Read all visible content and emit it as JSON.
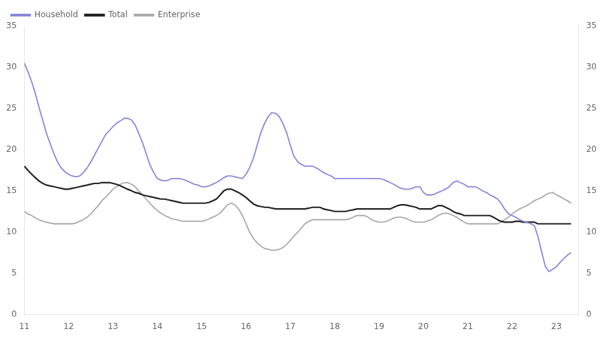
{
  "chart_data": {
    "type": "line",
    "x": [
      11.0,
      11.08,
      11.17,
      11.25,
      11.33,
      11.42,
      11.5,
      11.58,
      11.67,
      11.75,
      11.83,
      11.92,
      12.0,
      12.08,
      12.17,
      12.25,
      12.33,
      12.42,
      12.5,
      12.58,
      12.67,
      12.75,
      12.83,
      12.92,
      13.0,
      13.08,
      13.17,
      13.25,
      13.33,
      13.42,
      13.5,
      13.58,
      13.67,
      13.75,
      13.83,
      13.92,
      14.0,
      14.08,
      14.17,
      14.25,
      14.33,
      14.42,
      14.5,
      14.58,
      14.67,
      14.75,
      14.83,
      14.92,
      15.0,
      15.08,
      15.17,
      15.25,
      15.33,
      15.42,
      15.5,
      15.58,
      15.67,
      15.75,
      15.83,
      15.92,
      16.0,
      16.08,
      16.17,
      16.25,
      16.33,
      16.42,
      16.5,
      16.58,
      16.67,
      16.75,
      16.83,
      16.92,
      17.0,
      17.08,
      17.17,
      17.25,
      17.33,
      17.42,
      17.5,
      17.58,
      17.67,
      17.75,
      17.83,
      17.92,
      18.0,
      18.08,
      18.17,
      18.25,
      18.33,
      18.42,
      18.5,
      18.58,
      18.67,
      18.75,
      18.83,
      18.92,
      19.0,
      19.08,
      19.17,
      19.25,
      19.33,
      19.42,
      19.5,
      19.58,
      19.67,
      19.75,
      19.83,
      19.92,
      20.0,
      20.08,
      20.17,
      20.25,
      20.33,
      20.42,
      20.5,
      20.58,
      20.67,
      20.75,
      20.83,
      20.92,
      21.0,
      21.08,
      21.17,
      21.25,
      21.33,
      21.42,
      21.5,
      21.58,
      21.67,
      21.75,
      21.83,
      21.92,
      22.0,
      22.08,
      22.17,
      22.25,
      22.33,
      22.42,
      22.5,
      22.58,
      22.67,
      22.75,
      22.83,
      22.92,
      23.0,
      23.08,
      23.17,
      23.25,
      23.33
    ],
    "series": [
      {
        "name": "Household",
        "color": "#8888dd",
        "values": [
          30.5,
          29.5,
          28.2,
          26.8,
          25.2,
          23.5,
          22.0,
          20.8,
          19.5,
          18.5,
          17.8,
          17.3,
          17.0,
          16.8,
          16.7,
          16.8,
          17.2,
          17.8,
          18.5,
          19.3,
          20.2,
          21.0,
          21.8,
          22.3,
          22.8,
          23.2,
          23.5,
          23.8,
          23.8,
          23.6,
          23.0,
          22.0,
          20.8,
          19.5,
          18.2,
          17.2,
          16.5,
          16.3,
          16.2,
          16.3,
          16.5,
          16.5,
          16.5,
          16.4,
          16.2,
          16.0,
          15.8,
          15.7,
          15.5,
          15.5,
          15.6,
          15.8,
          16.0,
          16.3,
          16.6,
          16.8,
          16.8,
          16.7,
          16.6,
          16.5,
          17.0,
          17.8,
          19.0,
          20.5,
          22.0,
          23.2,
          24.0,
          24.5,
          24.4,
          24.0,
          23.2,
          22.0,
          20.5,
          19.2,
          18.5,
          18.2,
          18.0,
          18.0,
          18.0,
          17.8,
          17.5,
          17.2,
          17.0,
          16.8,
          16.5,
          16.5,
          16.5,
          16.5,
          16.5,
          16.5,
          16.5,
          16.5,
          16.5,
          16.5,
          16.5,
          16.5,
          16.5,
          16.4,
          16.2,
          16.0,
          15.8,
          15.5,
          15.3,
          15.2,
          15.2,
          15.3,
          15.5,
          15.5,
          14.8,
          14.5,
          14.5,
          14.6,
          14.8,
          15.0,
          15.2,
          15.5,
          16.0,
          16.2,
          16.0,
          15.8,
          15.5,
          15.5,
          15.5,
          15.3,
          15.0,
          14.8,
          14.5,
          14.3,
          14.0,
          13.5,
          12.8,
          12.2,
          12.0,
          11.8,
          11.5,
          11.3,
          11.2,
          11.0,
          10.8,
          9.5,
          7.5,
          5.8,
          5.2,
          5.5,
          5.8,
          6.3,
          6.8,
          7.2,
          7.5
        ]
      },
      {
        "name": "Total",
        "color": "#222222",
        "values": [
          18.0,
          17.5,
          17.0,
          16.6,
          16.2,
          15.9,
          15.7,
          15.6,
          15.5,
          15.4,
          15.3,
          15.2,
          15.2,
          15.3,
          15.4,
          15.5,
          15.6,
          15.7,
          15.8,
          15.9,
          15.9,
          16.0,
          16.0,
          16.0,
          15.9,
          15.8,
          15.6,
          15.4,
          15.2,
          15.0,
          14.8,
          14.7,
          14.5,
          14.4,
          14.3,
          14.2,
          14.1,
          14.0,
          14.0,
          13.9,
          13.8,
          13.7,
          13.6,
          13.5,
          13.5,
          13.5,
          13.5,
          13.5,
          13.5,
          13.5,
          13.6,
          13.8,
          14.0,
          14.5,
          15.0,
          15.2,
          15.2,
          15.0,
          14.8,
          14.5,
          14.2,
          13.8,
          13.4,
          13.2,
          13.1,
          13.0,
          13.0,
          12.9,
          12.8,
          12.8,
          12.8,
          12.8,
          12.8,
          12.8,
          12.8,
          12.8,
          12.8,
          12.9,
          13.0,
          13.0,
          13.0,
          12.8,
          12.7,
          12.6,
          12.5,
          12.5,
          12.5,
          12.5,
          12.6,
          12.7,
          12.8,
          12.8,
          12.8,
          12.8,
          12.8,
          12.8,
          12.8,
          12.8,
          12.8,
          12.8,
          13.0,
          13.2,
          13.3,
          13.3,
          13.2,
          13.1,
          13.0,
          12.8,
          12.8,
          12.8,
          12.8,
          13.0,
          13.2,
          13.2,
          13.0,
          12.8,
          12.5,
          12.3,
          12.2,
          12.0,
          12.0,
          12.0,
          12.0,
          12.0,
          12.0,
          12.0,
          12.0,
          11.8,
          11.5,
          11.3,
          11.2,
          11.2,
          11.2,
          11.3,
          11.3,
          11.2,
          11.2,
          11.2,
          11.2,
          11.0,
          11.0,
          11.0,
          11.0,
          11.0,
          11.0,
          11.0,
          11.0,
          11.0,
          11.0
        ]
      },
      {
        "name": "Enterprise",
        "color": "#aaaaaa",
        "values": [
          12.5,
          12.2,
          12.0,
          11.7,
          11.5,
          11.3,
          11.2,
          11.1,
          11.0,
          11.0,
          11.0,
          11.0,
          11.0,
          11.0,
          11.1,
          11.3,
          11.5,
          11.8,
          12.2,
          12.7,
          13.2,
          13.8,
          14.2,
          14.7,
          15.2,
          15.5,
          15.8,
          16.0,
          16.0,
          15.8,
          15.5,
          15.0,
          14.5,
          14.0,
          13.5,
          13.0,
          12.6,
          12.3,
          12.0,
          11.8,
          11.6,
          11.5,
          11.4,
          11.3,
          11.3,
          11.3,
          11.3,
          11.3,
          11.3,
          11.4,
          11.6,
          11.8,
          12.0,
          12.3,
          12.8,
          13.3,
          13.5,
          13.3,
          12.8,
          12.0,
          11.0,
          10.0,
          9.2,
          8.7,
          8.3,
          8.0,
          7.9,
          7.8,
          7.8,
          7.9,
          8.1,
          8.5,
          9.0,
          9.5,
          10.0,
          10.5,
          11.0,
          11.3,
          11.5,
          11.5,
          11.5,
          11.5,
          11.5,
          11.5,
          11.5,
          11.5,
          11.5,
          11.5,
          11.6,
          11.8,
          12.0,
          12.0,
          12.0,
          11.8,
          11.5,
          11.3,
          11.2,
          11.2,
          11.3,
          11.5,
          11.7,
          11.8,
          11.8,
          11.7,
          11.5,
          11.3,
          11.2,
          11.2,
          11.2,
          11.3,
          11.5,
          11.7,
          12.0,
          12.2,
          12.3,
          12.2,
          12.0,
          11.8,
          11.5,
          11.2,
          11.0,
          11.0,
          11.0,
          11.0,
          11.0,
          11.0,
          11.0,
          11.0,
          11.0,
          11.2,
          11.5,
          11.8,
          12.2,
          12.5,
          12.8,
          13.0,
          13.2,
          13.5,
          13.8,
          14.0,
          14.2,
          14.5,
          14.7,
          14.8,
          14.5,
          14.3,
          14.0,
          13.8,
          13.5
        ]
      }
    ],
    "xlim": [
      11,
      23.5
    ],
    "xticks": [
      11,
      12,
      13,
      14,
      15,
      16,
      17,
      18,
      19,
      20,
      21,
      22,
      23
    ],
    "ylim": [
      0,
      35
    ],
    "yticks": [
      0,
      5,
      10,
      15,
      20,
      25,
      30,
      35
    ],
    "y2lim": [
      0,
      35
    ],
    "y2ticks": [
      0,
      5,
      10,
      15,
      20,
      25,
      30,
      35
    ],
    "grid": false,
    "legend": "upper left"
  }
}
